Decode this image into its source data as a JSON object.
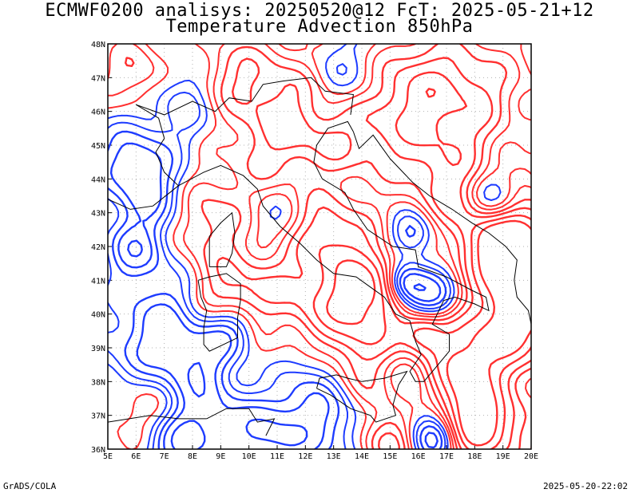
{
  "title": {
    "line1": "ECMWF0200 analisys: 20250520@12 FcT: 2025-05-21+12",
    "line2": "Temperature Advection 850hPa"
  },
  "map": {
    "lon_range": [
      5,
      20
    ],
    "lat_range": [
      36,
      48
    ],
    "lon_ticks": [
      "5E",
      "6E",
      "7E",
      "8E",
      "9E",
      "10E",
      "11E",
      "12E",
      "13E",
      "14E",
      "15E",
      "16E",
      "17E",
      "18E",
      "19E",
      "20E"
    ],
    "lat_ticks": [
      "36N",
      "37N",
      "38N",
      "39N",
      "40N",
      "41N",
      "42N",
      "43N",
      "44N",
      "45N",
      "46N",
      "47N",
      "48N"
    ],
    "grid": true,
    "colors": {
      "warm_advection": "#ff3030",
      "cold_advection": "#1e3cff",
      "coastline": "#000000",
      "grid": "#b0b0b0"
    }
  },
  "footer": {
    "left": "GrADS/COLA",
    "right": "2025-05-20-22:02"
  }
}
